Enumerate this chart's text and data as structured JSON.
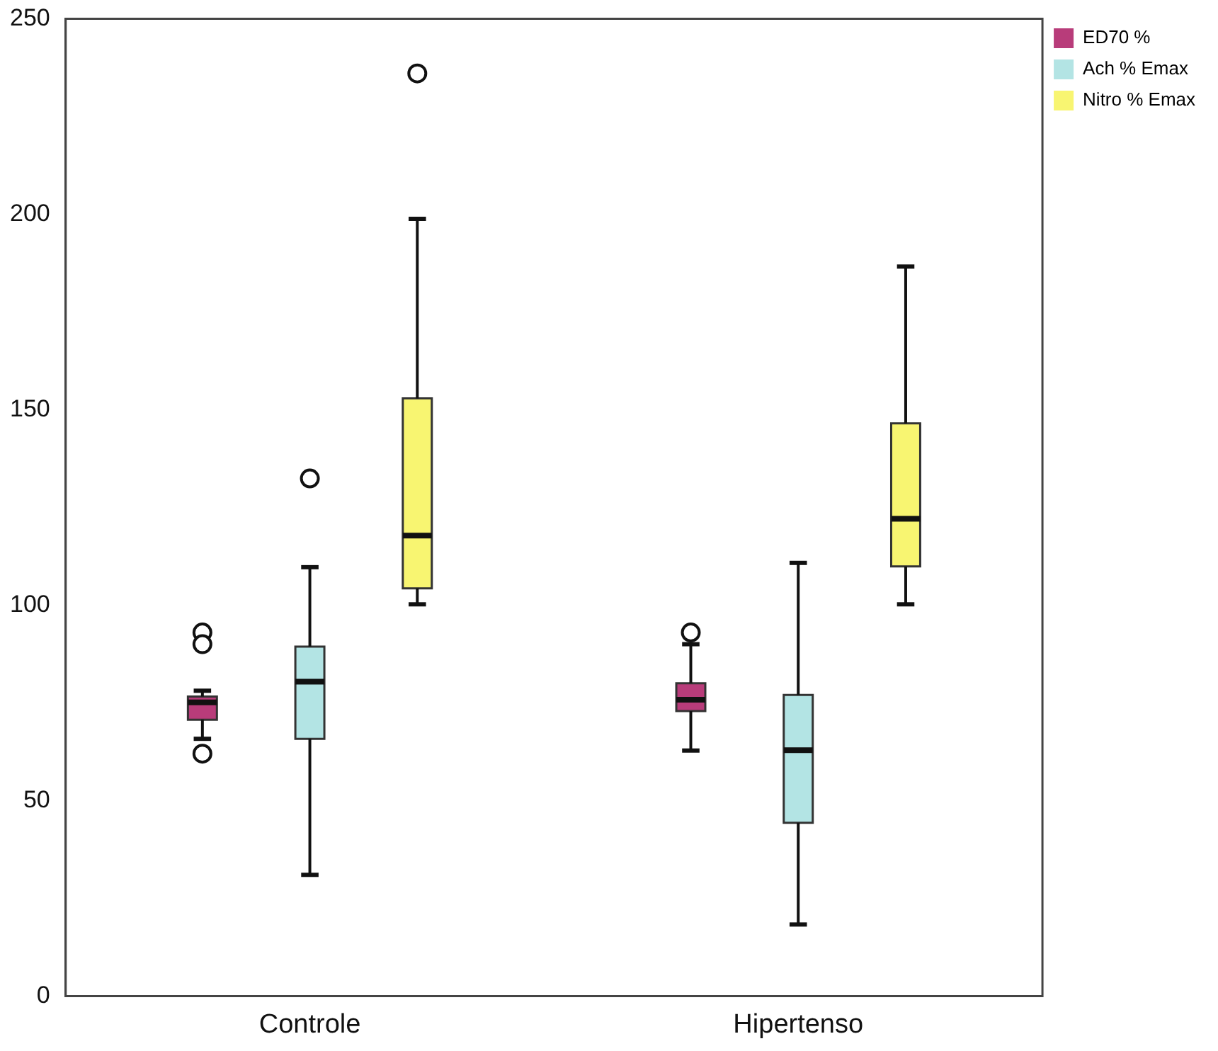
{
  "chart_data": {
    "type": "box",
    "categories": [
      "Controle",
      "Hipertenso"
    ],
    "ylim": [
      0,
      250
    ],
    "yticks": [
      0,
      50,
      100,
      150,
      200,
      250
    ],
    "grid": false,
    "legend": "top right",
    "series": [
      {
        "name": "ED70 %",
        "color": "#b83c7a",
        "boxes": [
          {
            "low": 65.8,
            "q1": 70.7,
            "median": 75.1,
            "q3": 76.6,
            "high": 78.1,
            "outliers": [
              93,
              90,
              62
            ]
          },
          {
            "low": 62.8,
            "q1": 72.9,
            "median": 75.8,
            "q3": 80,
            "high": 90,
            "outliers": [
              93
            ]
          }
        ]
      },
      {
        "name": "Ach % Emax",
        "color": "#b3e4e4",
        "boxes": [
          {
            "low": 31,
            "q1": 65.8,
            "median": 80.4,
            "q3": 89.4,
            "high": 109.7,
            "outliers": [
              132.4
            ]
          },
          {
            "low": 18.3,
            "q1": 44.3,
            "median": 62.9,
            "q3": 77,
            "high": 110.8
          }
        ]
      },
      {
        "name": "Nitro % Emax",
        "color": "#f8f571",
        "boxes": [
          {
            "low": 100.2,
            "q1": 104.3,
            "median": 117.8,
            "q3": 152.9,
            "high": 198.8,
            "outliers": [
              236
            ]
          },
          {
            "low": 100.2,
            "q1": 109.9,
            "median": 122.1,
            "q3": 146.5,
            "high": 186.6
          }
        ]
      }
    ]
  }
}
